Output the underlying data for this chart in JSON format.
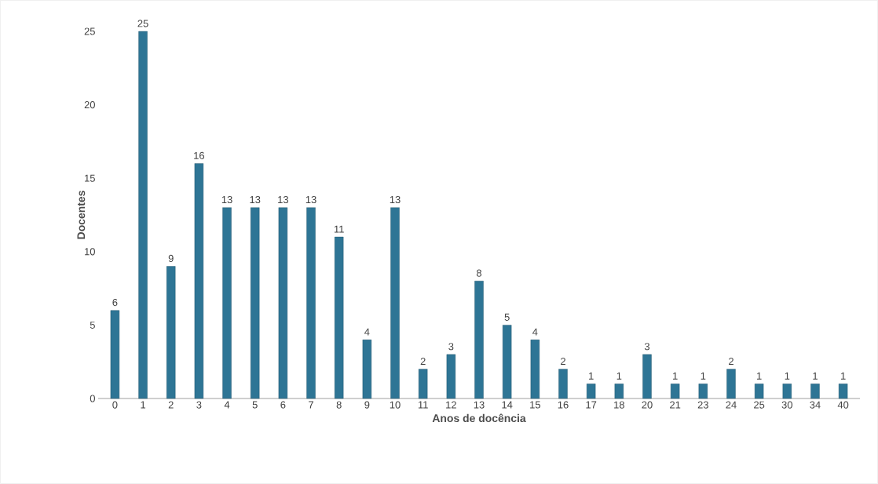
{
  "chart_data": {
    "type": "bar",
    "xlabel": "Anos de docência",
    "ylabel": "Docentes",
    "categories": [
      "0",
      "1",
      "2",
      "3",
      "4",
      "5",
      "6",
      "7",
      "8",
      "9",
      "10",
      "11",
      "12",
      "13",
      "14",
      "15",
      "16",
      "17",
      "18",
      "20",
      "21",
      "23",
      "24",
      "25",
      "30",
      "34",
      "40"
    ],
    "values": [
      6,
      25,
      9,
      16,
      13,
      13,
      13,
      13,
      11,
      4,
      13,
      2,
      3,
      8,
      5,
      4,
      2,
      1,
      1,
      3,
      1,
      1,
      2,
      1,
      1,
      1,
      1
    ],
    "color": "#2e7595",
    "ylim": [
      0,
      25
    ],
    "yticks": [
      0,
      5,
      10,
      15,
      20,
      25
    ],
    "data_labels": true
  }
}
